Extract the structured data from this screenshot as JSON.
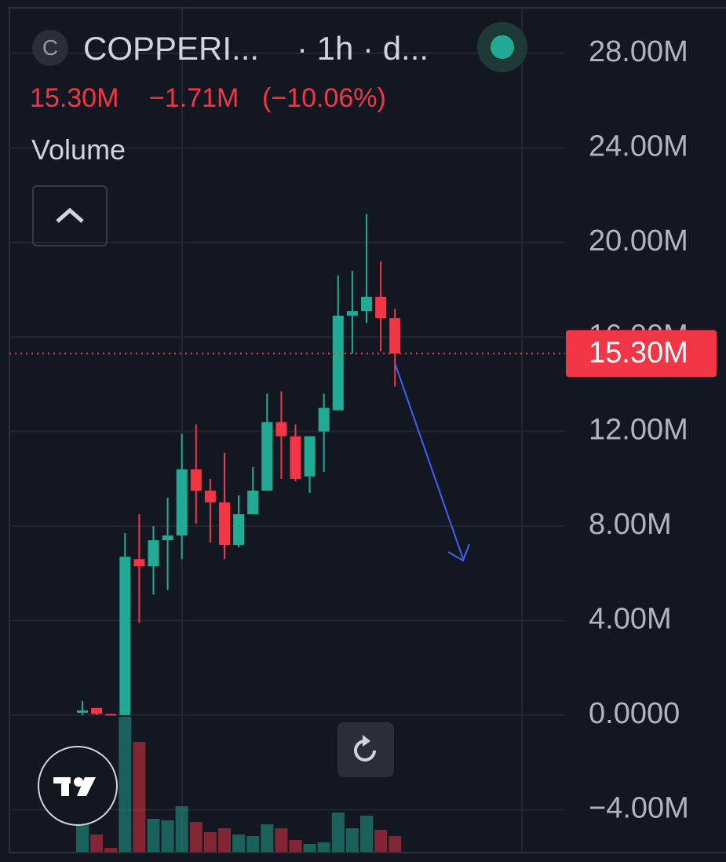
{
  "header": {
    "icon": "C",
    "symbol": "COPPERI...",
    "interval": "· 1h · d...",
    "last": "15.30M",
    "change": "−1.71M",
    "change_pct": "(−10.06%)",
    "indicator": "Volume"
  },
  "chart_data": {
    "type": "candlestick",
    "up_color": "#22ab94",
    "down_color": "#f23645",
    "open": [
      0.1,
      0.3,
      0.05,
      0,
      6.6,
      6.3,
      7.4,
      7.6,
      10.4,
      9.5,
      9.0,
      7.2,
      8.5,
      9.5,
      12.4,
      11.8,
      10.1,
      12.0,
      12.9,
      16.9,
      17.1,
      17.7,
      16.8
    ],
    "high": [
      0.6,
      0.3,
      0.05,
      7.7,
      8.5,
      8.0,
      9.2,
      11.9,
      12.3,
      10.0,
      11.1,
      9.3,
      10.5,
      13.6,
      13.7,
      12.3,
      11.8,
      13.6,
      18.6,
      18.8,
      21.2,
      19.2,
      17.2
    ],
    "low": [
      0,
      0,
      0,
      0,
      3.9,
      5.1,
      5.3,
      6.6,
      8.1,
      7.3,
      6.6,
      7.1,
      8.5,
      9.5,
      10.0,
      9.9,
      9.4,
      10.3,
      12.9,
      15.3,
      16.6,
      15.4,
      13.9
    ],
    "close": [
      0.2,
      0.05,
      0,
      6.7,
      6.3,
      7.4,
      7.6,
      10.4,
      9.5,
      9.0,
      7.2,
      8.5,
      9.5,
      12.4,
      11.8,
      10.0,
      11.8,
      13.0,
      16.9,
      17.1,
      17.7,
      16.8,
      15.3
    ],
    "volume": [
      35,
      22,
      5,
      172,
      140,
      42,
      40,
      58,
      38,
      25,
      30,
      22,
      20,
      35,
      30,
      15,
      10,
      12,
      50,
      30,
      46,
      28,
      20
    ],
    "ylim": [
      -5.85,
      30.26
    ],
    "yticks": [
      {
        "value": 28,
        "label": "28.00M"
      },
      {
        "value": 24,
        "label": "24.00M"
      },
      {
        "value": 20,
        "label": "20.00M"
      },
      {
        "value": 16,
        "label": "16.00M"
      },
      {
        "value": 12,
        "label": "12.00M"
      },
      {
        "value": 8,
        "label": "8.00M"
      },
      {
        "value": 4,
        "label": "4.00M"
      },
      {
        "value": 0,
        "label": "0.0000"
      },
      {
        "value": -4,
        "label": "−4.00M"
      }
    ],
    "last_price": {
      "value": 15.3,
      "label": "15.30M"
    },
    "grid": true
  }
}
